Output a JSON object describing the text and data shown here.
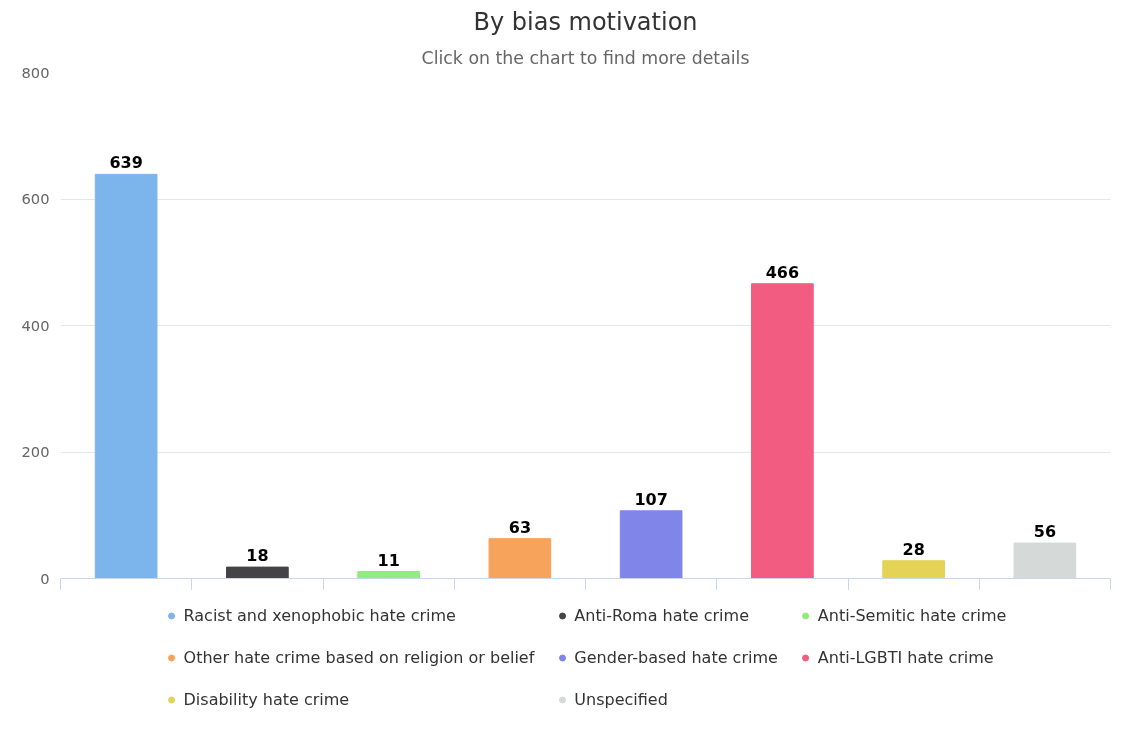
{
  "chart_data": {
    "type": "bar",
    "title": "By bias motivation",
    "subtitle": "Click on the chart to find more details",
    "categories": [
      null,
      null,
      null,
      null,
      null,
      null,
      null,
      null
    ],
    "series": [
      {
        "name": "Racist and xenophobic hate crime",
        "color": "#7cb5ec",
        "values": [
          639,
          null,
          null,
          null,
          null,
          null,
          null,
          null
        ]
      },
      {
        "name": "Anti-Roma hate crime",
        "color": "#434348",
        "values": [
          null,
          18,
          null,
          null,
          null,
          null,
          null,
          null
        ]
      },
      {
        "name": "Anti-Semitic hate crime",
        "color": "#90ed7d",
        "values": [
          null,
          null,
          11,
          null,
          null,
          null,
          null,
          null
        ]
      },
      {
        "name": "Other hate crime based on religion or belief",
        "color": "#f7a35c",
        "values": [
          null,
          null,
          null,
          63,
          null,
          null,
          null,
          null
        ]
      },
      {
        "name": "Gender-based hate crime",
        "color": "#8085e9",
        "values": [
          null,
          null,
          null,
          null,
          107,
          null,
          null,
          null
        ]
      },
      {
        "name": "Anti-LGBTI hate crime",
        "color": "#f15c80",
        "values": [
          null,
          null,
          null,
          null,
          null,
          466,
          null,
          null
        ]
      },
      {
        "name": "Disability hate crime",
        "color": "#e4d354",
        "values": [
          null,
          null,
          null,
          null,
          null,
          null,
          28,
          null
        ]
      },
      {
        "name": "Unspecified",
        "color": "#d5d9d8",
        "values": [
          null,
          null,
          null,
          null,
          null,
          null,
          null,
          56
        ]
      }
    ],
    "ylim": [
      0,
      800
    ],
    "yticks": [
      0,
      200,
      400,
      600,
      800
    ],
    "grid": "y",
    "legend": "bottom",
    "data_labels": true
  }
}
